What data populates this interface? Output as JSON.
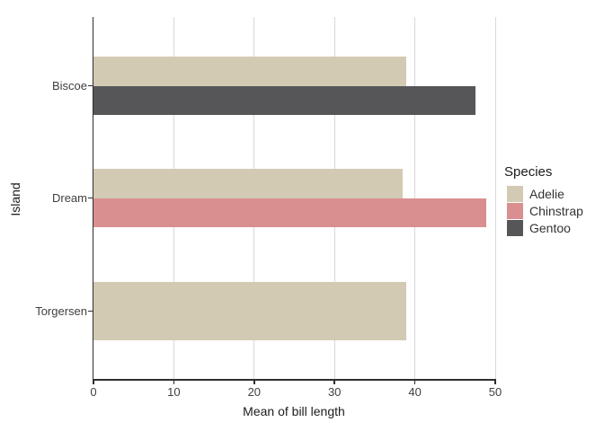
{
  "chart_data": {
    "type": "bar",
    "orientation": "horizontal",
    "title": "",
    "xlabel": "Mean of bill length",
    "ylabel": "Island",
    "xlim": [
      0,
      50
    ],
    "xticks": [
      0,
      10,
      20,
      30,
      40,
      50
    ],
    "grid": "vertical major gridlines only, light gray; black left and bottom axis lines; legend centered at right",
    "categories": [
      "Biscoe",
      "Dream",
      "Torgersen"
    ],
    "series": [
      {
        "name": "Adelie",
        "color": "#d3cab4",
        "values": [
          38.98,
          38.5,
          38.95
        ]
      },
      {
        "name": "Chinstrap",
        "color": "#d98e90",
        "values": [
          null,
          48.83,
          null
        ]
      },
      {
        "name": "Gentoo",
        "color": "#565659",
        "values": [
          47.5,
          null,
          null
        ]
      }
    ],
    "legend": {
      "title": "Species",
      "position": "right",
      "entries": [
        {
          "label": "Adelie",
          "color": "#d3cab4"
        },
        {
          "label": "Chinstrap",
          "color": "#d98e90"
        },
        {
          "label": "Gentoo",
          "color": "#565659"
        }
      ]
    },
    "colors": {
      "background": "#ffffff",
      "gridline": "#d9d9d9",
      "axis_line": "#2e2e2e",
      "tick_label": "#404040",
      "axis_title": "#1c1c1c"
    }
  }
}
